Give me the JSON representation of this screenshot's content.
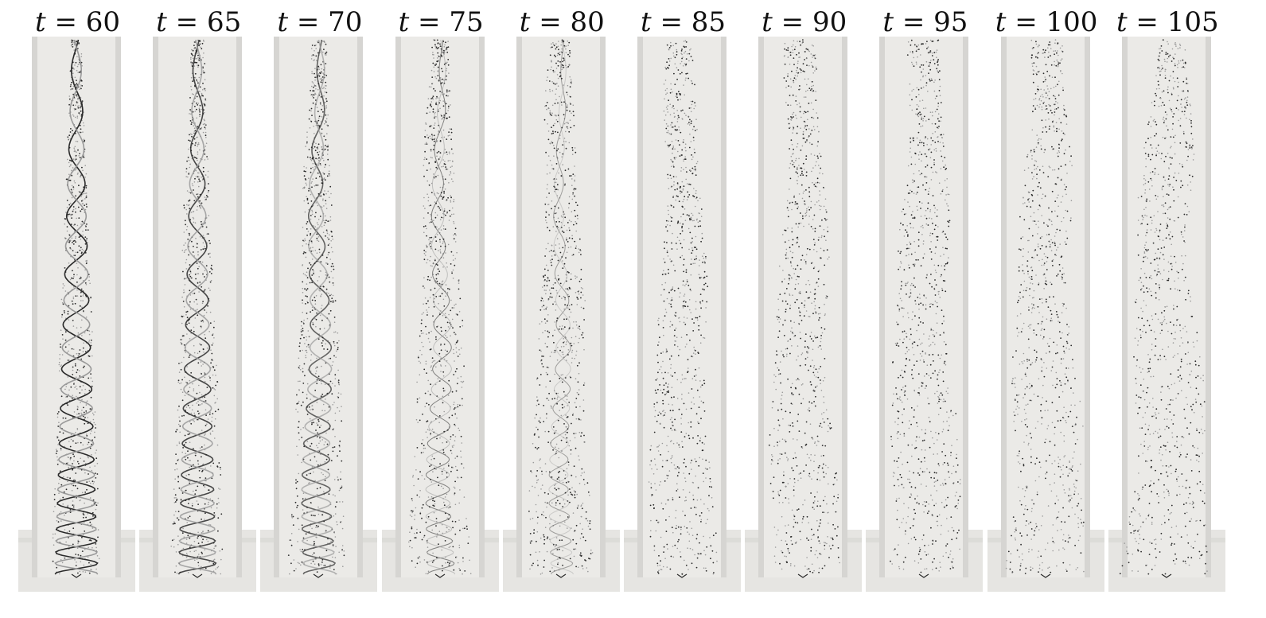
{
  "figure": {
    "panels": [
      {
        "variable": "t",
        "value": "60"
      },
      {
        "variable": "t",
        "value": "65"
      },
      {
        "variable": "t",
        "value": "70"
      },
      {
        "variable": "t",
        "value": "75"
      },
      {
        "variable": "t",
        "value": "80"
      },
      {
        "variable": "t",
        "value": "85"
      },
      {
        "variable": "t",
        "value": "90"
      },
      {
        "variable": "t",
        "value": "95"
      },
      {
        "variable": "t",
        "value": "100"
      },
      {
        "variable": "t",
        "value": "105"
      }
    ],
    "colors": {
      "tube_fill": "#ebeae7",
      "tube_wall": "#d6d5d2",
      "base_fill": "#e6e5e2",
      "dark_filament": "#2a2a2a",
      "light_filament": "#9a9a9a"
    }
  }
}
